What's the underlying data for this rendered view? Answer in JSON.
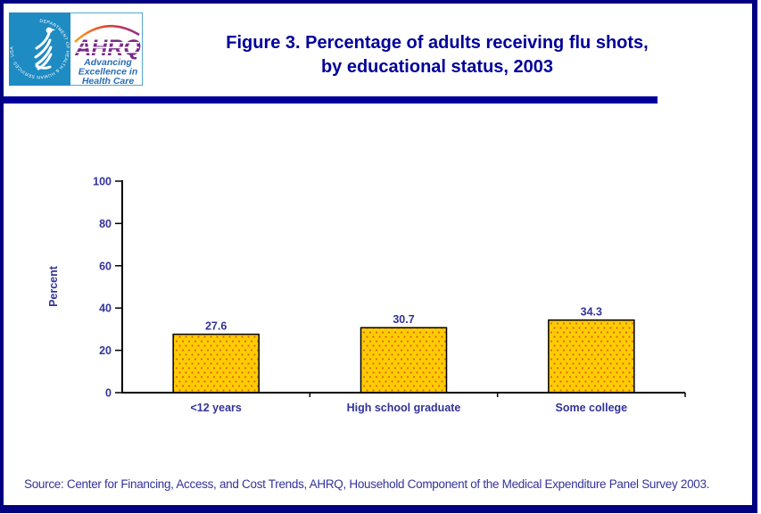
{
  "page": {
    "title_line1": "Figure 3. Percentage of adults receiving flu shots,",
    "title_line2": "by educational status, 2003",
    "source": "Source: Center for Financing, Access, and Cost Trends, AHRQ, Household Component of the Medical Expenditure Panel Survey 2003.",
    "colors": {
      "border": "#000080",
      "accent_bar": "#000099",
      "title": "#000099",
      "label": "#333399",
      "bar_fill": "#FFCC00",
      "bar_dot": "#E06420",
      "hhs_blue": "#1E8BC3",
      "ahrq_purple": "#7A2A8A",
      "ahrq_blue": "#2B6CB8"
    }
  },
  "logo": {
    "hhs_ring_text": "DEPARTMENT OF HEALTH & HUMAN SERVICES · USA",
    "ahrq_acronym": "AHRQ",
    "tagline_line1": "Advancing",
    "tagline_line2": "Excellence in",
    "tagline_line3": "Health Care"
  },
  "chart_data": {
    "type": "bar",
    "title": "Figure 3. Percentage of adults receiving flu shots, by educational status, 2003",
    "categories": [
      "<12 years",
      "High school graduate",
      "Some college"
    ],
    "values": [
      27.6,
      30.7,
      34.3
    ],
    "value_labels": [
      "27.6",
      "30.7",
      "34.3"
    ],
    "xlabel": "",
    "ylabel": "Percent",
    "ylim": [
      0,
      100
    ],
    "yticks": [
      0,
      20,
      40,
      60,
      80,
      100
    ],
    "grid": false,
    "legend": false
  }
}
